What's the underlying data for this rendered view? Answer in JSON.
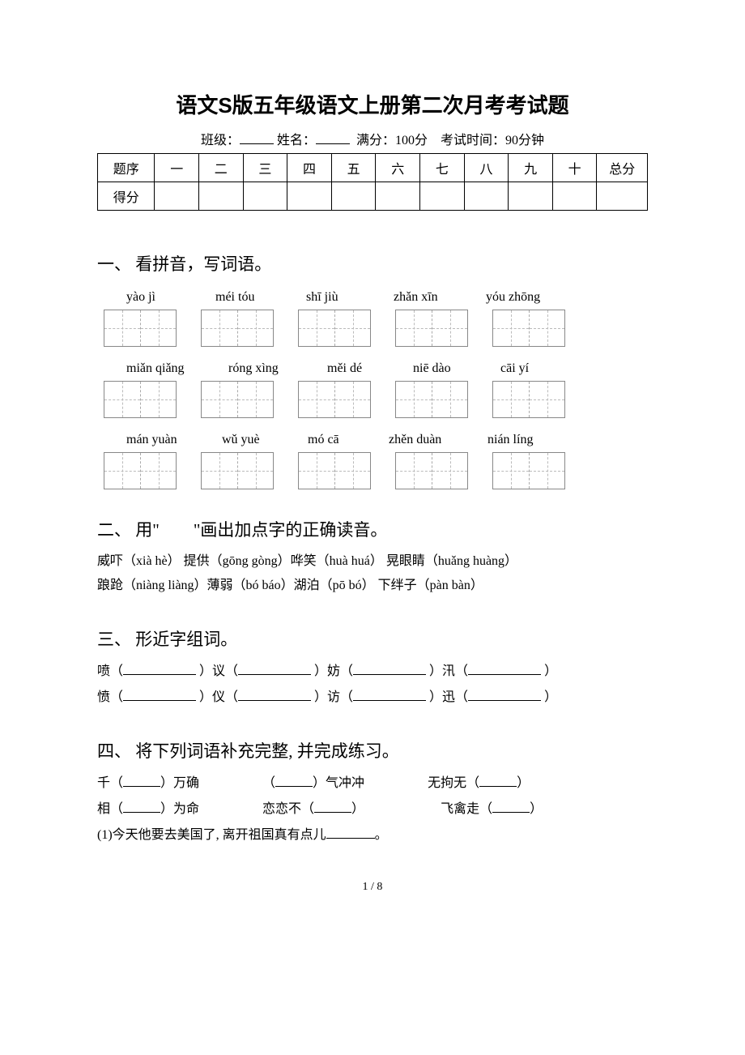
{
  "title": "语文S版五年级语文上册第二次月考考试题",
  "meta": {
    "class_label": "班级：",
    "name_label": "姓名：",
    "fullscore_label": "满分：100分",
    "time_label": "考试时间：90分钟"
  },
  "score_table": {
    "row1": [
      "题序",
      "一",
      "二",
      "三",
      "四",
      "五",
      "六",
      "七",
      "八",
      "九",
      "十",
      "总分"
    ],
    "row2_label": "得分"
  },
  "sections": {
    "s1": {
      "heading": "一、 看拼音，写词语。",
      "row1_pinyin": [
        "yào jì",
        "méi tóu",
        "shī jiù",
        "zhǎn xīn",
        "yóu zhōng"
      ],
      "row2_pinyin": [
        "miǎn qiǎng",
        "róng xìng",
        "měi dé",
        "niē dào",
        "cāi yí"
      ],
      "row3_pinyin": [
        "mán yuàn",
        "wǔ yuè",
        "mó cā",
        "zhěn duàn",
        "nián líng"
      ],
      "row1_widths": [
        80,
        82,
        78,
        84,
        90
      ],
      "row2_widths": [
        96,
        92,
        76,
        78,
        66
      ],
      "row3_widths": [
        88,
        76,
        70,
        92,
        80
      ]
    },
    "s2": {
      "heading": "二、 用\"　　\"画出加点字的正确读音。",
      "line1_parts": [
        "威吓（xià hè）  提供（gōng gòng）哗笑（huà huá）  晃眼睛（huǎng huàng）"
      ],
      "line2_parts": [
        "踉跄（niàng liàng）薄弱（bó báo）湖泊（pō bó）   下绊子（pàn bàn）"
      ]
    },
    "s3": {
      "heading": "三、 形近字组词。",
      "pairs": [
        {
          "a": "喷（",
          "b": "）议（",
          "c": "）妨（",
          "d": "）汛（",
          "e": "）"
        },
        {
          "a": "愤（",
          "b": "）仪（",
          "c": "）访（",
          "d": "）迅（",
          "e": "）"
        }
      ]
    },
    "s4": {
      "heading": "四、 将下列词语补充完整, 并完成练习。",
      "line1": {
        "a": "千（",
        "b": "）万确",
        "c": "（",
        "d": "）气冲冲",
        "e": "无拘无（",
        "f": "）"
      },
      "line2": {
        "a": "相（",
        "b": "）为命",
        "c": "恋恋不（",
        "d": "）",
        "e": "飞禽走（",
        "f": "）"
      },
      "line3_prefix": "(1)今天他要去美国了, 离开祖国真有点儿",
      "line3_suffix": "。"
    }
  },
  "page_number": "1 / 8"
}
